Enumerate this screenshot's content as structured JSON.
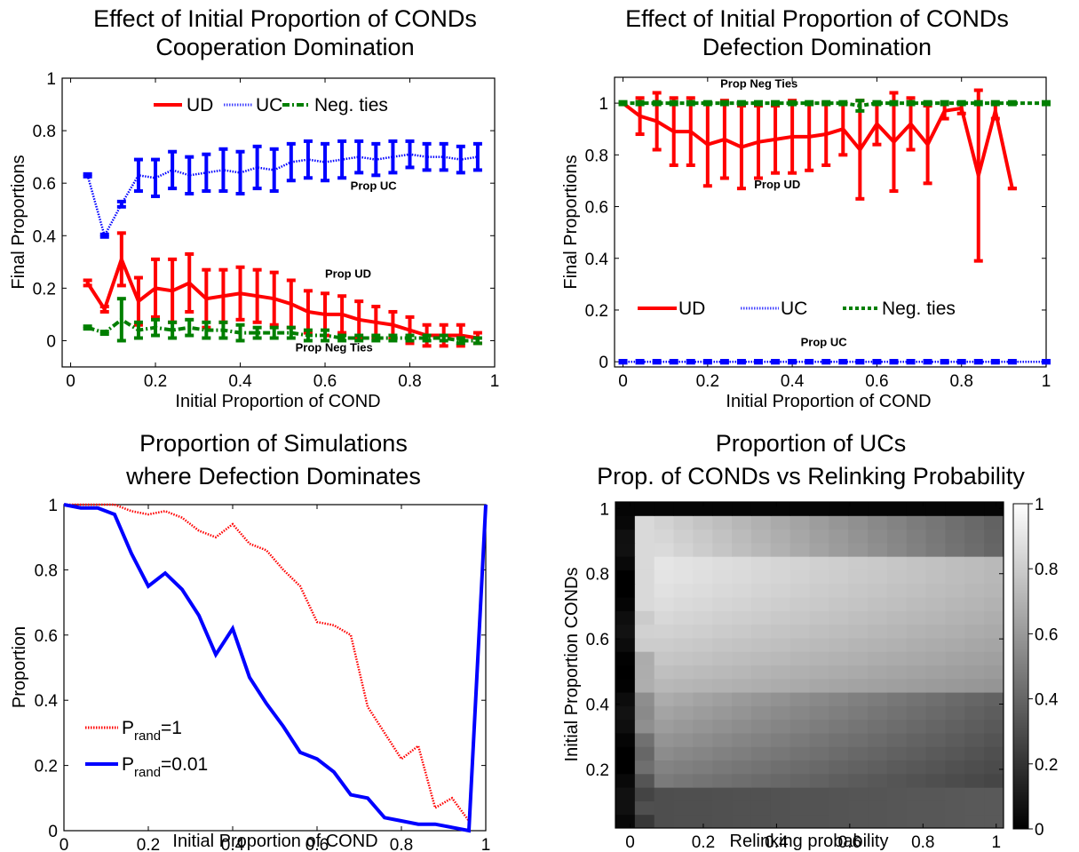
{
  "chart_data": [
    {
      "type": "line",
      "title_lines": [
        "Effect of Initial Proportion of CONDs",
        "Cooperation Domination"
      ],
      "xlabel": "Initial Proportion of COND",
      "ylabel": "Final Proportions",
      "xlim": [
        -0.02,
        1.0
      ],
      "ylim": [
        -0.1,
        1.0
      ],
      "xticks": [
        "0",
        "0.2",
        "0.4",
        "0.6",
        "0.8",
        "1"
      ],
      "yticks": [
        "0",
        "0.2",
        "0.4",
        "0.6",
        "0.8",
        "1"
      ],
      "legend": {
        "placement": "top",
        "entries": [
          "UD",
          "UC",
          "Neg. ties"
        ]
      },
      "annotations": [
        {
          "text": "Prop UC",
          "x": 0.66,
          "y": 0.575
        },
        {
          "text": "Prop UD",
          "x": 0.6,
          "y": 0.24
        },
        {
          "text": "Prop Neg Ties",
          "x": 0.53,
          "y": -0.04
        }
      ],
      "series": [
        {
          "name": "UD",
          "color": "#ff0000",
          "style": "solid",
          "x": [
            0.04,
            0.08,
            0.12,
            0.16,
            0.2,
            0.24,
            0.28,
            0.32,
            0.36,
            0.4,
            0.44,
            0.48,
            0.52,
            0.56,
            0.6,
            0.64,
            0.68,
            0.72,
            0.76,
            0.8,
            0.84,
            0.88,
            0.92,
            0.96
          ],
          "y": [
            0.22,
            0.12,
            0.31,
            0.15,
            0.2,
            0.19,
            0.22,
            0.16,
            0.17,
            0.18,
            0.17,
            0.16,
            0.14,
            0.11,
            0.1,
            0.1,
            0.08,
            0.07,
            0.06,
            0.04,
            0.02,
            0.02,
            0.02,
            0.01
          ],
          "err": [
            0.01,
            0.01,
            0.1,
            0.09,
            0.11,
            0.12,
            0.11,
            0.11,
            0.1,
            0.1,
            0.1,
            0.1,
            0.09,
            0.08,
            0.08,
            0.07,
            0.07,
            0.06,
            0.05,
            0.05,
            0.04,
            0.04,
            0.04,
            0.02
          ]
        },
        {
          "name": "UC",
          "color": "#0000ff",
          "style": "dotted",
          "x": [
            0.04,
            0.08,
            0.12,
            0.16,
            0.2,
            0.24,
            0.28,
            0.32,
            0.36,
            0.4,
            0.44,
            0.48,
            0.52,
            0.56,
            0.6,
            0.64,
            0.68,
            0.72,
            0.76,
            0.8,
            0.84,
            0.88,
            0.92,
            0.96
          ],
          "y": [
            0.63,
            0.4,
            0.52,
            0.63,
            0.62,
            0.65,
            0.63,
            0.64,
            0.65,
            0.64,
            0.66,
            0.65,
            0.68,
            0.69,
            0.68,
            0.69,
            0.7,
            0.69,
            0.7,
            0.71,
            0.7,
            0.7,
            0.69,
            0.7
          ],
          "err": [
            0.005,
            0.005,
            0.01,
            0.06,
            0.07,
            0.07,
            0.07,
            0.07,
            0.08,
            0.08,
            0.08,
            0.08,
            0.07,
            0.07,
            0.07,
            0.07,
            0.06,
            0.06,
            0.06,
            0.05,
            0.05,
            0.05,
            0.05,
            0.05
          ]
        },
        {
          "name": "Neg. ties",
          "color": "#007f00",
          "style": "dashdot",
          "x": [
            0.04,
            0.08,
            0.12,
            0.16,
            0.2,
            0.24,
            0.28,
            0.32,
            0.36,
            0.4,
            0.44,
            0.48,
            0.52,
            0.56,
            0.6,
            0.64,
            0.68,
            0.72,
            0.76,
            0.8,
            0.84,
            0.88,
            0.92,
            0.96
          ],
          "y": [
            0.05,
            0.03,
            0.08,
            0.04,
            0.05,
            0.04,
            0.05,
            0.04,
            0.04,
            0.03,
            0.03,
            0.03,
            0.03,
            0.02,
            0.02,
            0.01,
            0.01,
            0.01,
            0.01,
            0.01,
            0.01,
            0.01,
            0.0,
            0.0
          ],
          "err": [
            0.005,
            0.005,
            0.08,
            0.03,
            0.03,
            0.03,
            0.03,
            0.03,
            0.03,
            0.03,
            0.02,
            0.02,
            0.02,
            0.02,
            0.02,
            0.01,
            0.01,
            0.01,
            0.01,
            0.01,
            0.01,
            0.01,
            0.01,
            0.01
          ]
        }
      ]
    },
    {
      "type": "line",
      "title_lines": [
        "Effect of Initial Proportion of CONDs",
        "Defection Domination"
      ],
      "xlabel": "Initial Proportion of COND",
      "ylabel": "Final Proportions",
      "xlim": [
        -0.02,
        1.0
      ],
      "ylim": [
        -0.02,
        1.1
      ],
      "xticks": [
        "0",
        "0.2",
        "0.4",
        "0.6",
        "0.8",
        "1"
      ],
      "yticks": [
        "0",
        "0.2",
        "0.4",
        "0.6",
        "0.8",
        "1"
      ],
      "legend": {
        "placement": "lower-middle",
        "entries": [
          "UD",
          "UC",
          "Neg. ties"
        ]
      },
      "annotations": [
        {
          "text": "Prop Neg Ties",
          "x": 0.23,
          "y": 1.06
        },
        {
          "text": "Prop UD",
          "x": 0.31,
          "y": 0.67
        },
        {
          "text": "Prop UC",
          "x": 0.42,
          "y": 0.06
        }
      ],
      "series": [
        {
          "name": "UD",
          "color": "#ff0000",
          "style": "solid",
          "x": [
            0.0,
            0.04,
            0.08,
            0.12,
            0.16,
            0.2,
            0.24,
            0.28,
            0.32,
            0.36,
            0.4,
            0.44,
            0.48,
            0.52,
            0.56,
            0.6,
            0.64,
            0.68,
            0.72,
            0.76,
            0.8,
            0.84,
            0.88,
            0.92
          ],
          "y": [
            1.0,
            0.95,
            0.93,
            0.89,
            0.89,
            0.84,
            0.86,
            0.83,
            0.85,
            0.86,
            0.87,
            0.87,
            0.88,
            0.9,
            0.82,
            0.92,
            0.85,
            0.92,
            0.84,
            0.97,
            0.98,
            0.72,
            0.97,
            0.67
          ],
          "err": [
            0.0,
            0.07,
            0.11,
            0.13,
            0.13,
            0.16,
            0.15,
            0.16,
            0.14,
            0.13,
            0.14,
            0.13,
            0.12,
            0.1,
            0.19,
            0.08,
            0.19,
            0.1,
            0.15,
            0.03,
            0.02,
            0.33,
            0.03,
            0.0
          ]
        },
        {
          "name": "UC",
          "color": "#0000ff",
          "style": "dotted",
          "x": [
            0.0,
            0.04,
            0.08,
            0.12,
            0.16,
            0.2,
            0.24,
            0.28,
            0.32,
            0.36,
            0.4,
            0.44,
            0.48,
            0.52,
            0.56,
            0.6,
            0.64,
            0.68,
            0.72,
            0.76,
            0.8,
            0.84,
            0.88,
            0.92,
            1.0
          ],
          "y": [
            0.0,
            0.0,
            0.0,
            0.0,
            0.0,
            0.0,
            0.0,
            0.0,
            0.0,
            0.0,
            0.0,
            0.0,
            0.0,
            0.0,
            0.0,
            0.0,
            0.0,
            0.0,
            0.0,
            0.0,
            0.0,
            0.0,
            0.0,
            0.0,
            0.0
          ],
          "err": [
            0.004,
            0.004,
            0.004,
            0.004,
            0.004,
            0.004,
            0.004,
            0.004,
            0.004,
            0.004,
            0.004,
            0.004,
            0.004,
            0.004,
            0.004,
            0.004,
            0.004,
            0.004,
            0.004,
            0.004,
            0.004,
            0.004,
            0.004,
            0.004,
            0.004
          ]
        },
        {
          "name": "Neg. ties",
          "color": "#007f00",
          "style": "dashed",
          "x": [
            0.0,
            0.04,
            0.08,
            0.12,
            0.16,
            0.2,
            0.24,
            0.28,
            0.32,
            0.36,
            0.4,
            0.44,
            0.48,
            0.52,
            0.56,
            0.6,
            0.64,
            0.68,
            0.72,
            0.76,
            0.8,
            0.84,
            0.88,
            0.92,
            1.0
          ],
          "y": [
            1.0,
            1.0,
            1.0,
            1.0,
            1.0,
            1.0,
            1.0,
            1.0,
            1.0,
            1.0,
            1.0,
            1.0,
            1.0,
            1.0,
            0.99,
            1.0,
            1.0,
            1.0,
            1.0,
            1.0,
            1.0,
            1.0,
            1.0,
            1.0,
            1.0
          ],
          "err": [
            0.005,
            0.005,
            0.005,
            0.005,
            0.005,
            0.005,
            0.005,
            0.005,
            0.005,
            0.005,
            0.005,
            0.005,
            0.005,
            0.005,
            0.02,
            0.005,
            0.005,
            0.005,
            0.005,
            0.005,
            0.005,
            0.005,
            0.005,
            0.005,
            0.005
          ]
        }
      ]
    },
    {
      "type": "line",
      "title_lines": [
        "Proportion of Simulations",
        "where Defection Dominates"
      ],
      "xlabel": "Initial Proportion of COND",
      "ylabel": "Proportion",
      "xlim": [
        0,
        1.0
      ],
      "ylim": [
        0,
        1.0
      ],
      "xticks": [
        "0",
        "0.2",
        "0.4",
        "0.6",
        "0.8",
        "1"
      ],
      "yticks": [
        "0",
        "0.2",
        "0.4",
        "0.6",
        "0.8",
        "1"
      ],
      "legend": {
        "placement": "lower-left",
        "entries": [
          {
            "base": "P",
            "sub": "rand",
            "rest": "=1"
          },
          {
            "base": "P",
            "sub": "rand",
            "rest": "=0.01"
          }
        ]
      },
      "series": [
        {
          "name": "Prand=1",
          "color": "#ff0000",
          "style": "dotted",
          "x": [
            0.0,
            0.04,
            0.08,
            0.12,
            0.16,
            0.2,
            0.24,
            0.28,
            0.32,
            0.36,
            0.4,
            0.44,
            0.48,
            0.52,
            0.56,
            0.6,
            0.64,
            0.68,
            0.72,
            0.76,
            0.8,
            0.84,
            0.88,
            0.92,
            0.96,
            1.0
          ],
          "y": [
            1.0,
            1.0,
            1.0,
            1.0,
            0.98,
            0.97,
            0.98,
            0.96,
            0.92,
            0.9,
            0.94,
            0.88,
            0.86,
            0.8,
            0.75,
            0.64,
            0.63,
            0.6,
            0.38,
            0.3,
            0.22,
            0.26,
            0.07,
            0.1,
            0.03,
            1.0
          ]
        },
        {
          "name": "Prand=0.01",
          "color": "#0000ff",
          "style": "solid",
          "x": [
            0.0,
            0.04,
            0.08,
            0.12,
            0.16,
            0.2,
            0.24,
            0.28,
            0.32,
            0.36,
            0.4,
            0.44,
            0.48,
            0.52,
            0.56,
            0.6,
            0.64,
            0.68,
            0.72,
            0.76,
            0.8,
            0.84,
            0.88,
            0.92,
            0.96,
            1.0
          ],
          "y": [
            1.0,
            0.99,
            0.99,
            0.97,
            0.85,
            0.75,
            0.79,
            0.74,
            0.66,
            0.54,
            0.62,
            0.47,
            0.39,
            0.32,
            0.24,
            0.22,
            0.18,
            0.11,
            0.1,
            0.04,
            0.03,
            0.02,
            0.02,
            0.01,
            0.0,
            1.0
          ]
        }
      ]
    },
    {
      "type": "heatmap",
      "title_lines": [
        "Proportion of UCs",
        "Prop. of CONDs vs Relinking Probability"
      ],
      "xlabel": "Relinking probability",
      "ylabel": "Initial Proportion CONDs",
      "xlim": [
        -0.04,
        1.02
      ],
      "ylim": [
        0.02,
        1.02
      ],
      "xticks": [
        "0",
        "0.2",
        "0.4",
        "0.6",
        "0.8",
        "1"
      ],
      "yticks": [
        "0.2",
        "0.4",
        "0.6",
        "0.8",
        "1"
      ],
      "colorbar_ticks": [
        "0",
        "0.2",
        "0.4",
        "0.6",
        "0.8",
        "1"
      ],
      "colormap": "gray",
      "x_count": 20,
      "y_count": 24,
      "description_model": "value rises quickly from 0 near relinking 0, peaks around COND 0.7-0.85 and decreases toward low COND; top row is 0"
    }
  ]
}
